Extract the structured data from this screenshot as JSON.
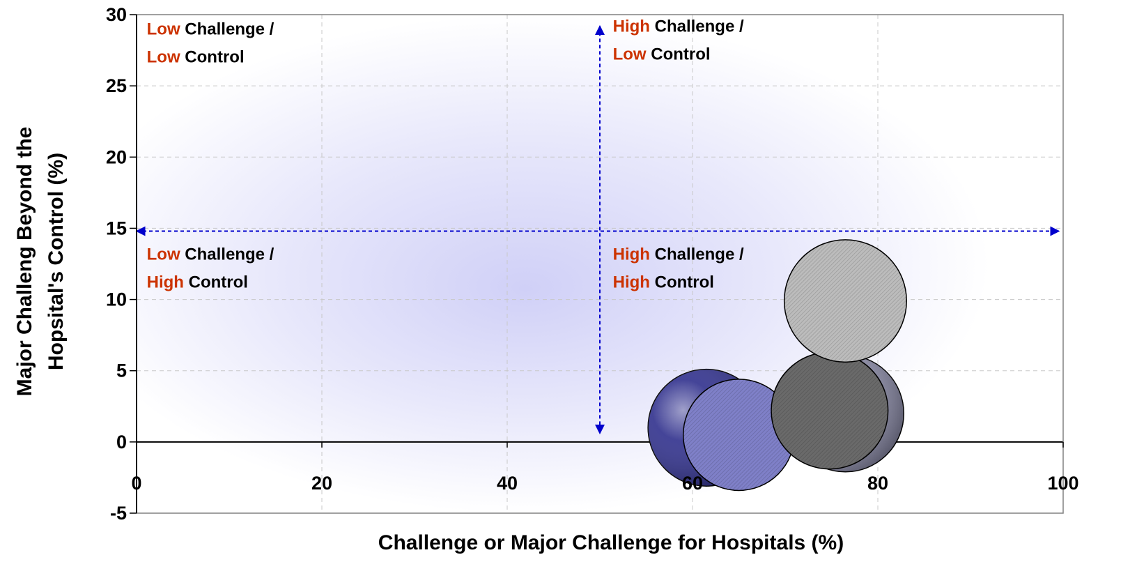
{
  "chart_data": {
    "type": "scatter",
    "subtype": "bubble",
    "title": "",
    "xlabel": "Challenge or Major Challenge for Hospitals (%)",
    "ylabel_line1": "Major Challeng Beyond the",
    "ylabel_line2": "Hopsital's Control (%)",
    "xlim": [
      0,
      100
    ],
    "ylim": [
      -5,
      30
    ],
    "x_ticks": [
      "0",
      "20",
      "40",
      "60",
      "80",
      "100"
    ],
    "y_ticks": [
      "-5",
      "0",
      "5",
      "10",
      "15",
      "20",
      "25",
      "30"
    ],
    "grid": true,
    "background": "soft blue radial gradient",
    "divider_x": 50,
    "divider_y": 14.8,
    "divider_color": "#0000cc",
    "quadrant_labels": [
      {
        "id": "low-low",
        "x": 1.1,
        "y": 28.6,
        "lines": [
          [
            "Low",
            " Challenge /"
          ],
          [
            "Low",
            " Control"
          ]
        ]
      },
      {
        "id": "high-low",
        "x": 51.4,
        "y": 28.8,
        "lines": [
          [
            "High",
            " Challenge /"
          ],
          [
            "Low",
            " Control"
          ]
        ]
      },
      {
        "id": "low-high",
        "x": 1.1,
        "y": 12.8,
        "lines": [
          [
            "Low",
            " Challenge /"
          ],
          [
            "High",
            " Control"
          ]
        ]
      },
      {
        "id": "high-high",
        "x": 51.4,
        "y": 12.8,
        "lines": [
          [
            "High",
            " Challenge /"
          ],
          [
            "High",
            " Control"
          ]
        ]
      }
    ],
    "label_highlight_color": "#cc3300",
    "label_text_color": "#000000",
    "bubbles": [
      {
        "x": 61.5,
        "y": 1.0,
        "size": 6.3,
        "fill": "#2b2b8a",
        "style": "shaded"
      },
      {
        "x": 65.0,
        "y": 0.5,
        "size": 6.0,
        "fill": "#7f80c8",
        "style": "hatched"
      },
      {
        "x": 76.5,
        "y": 2.0,
        "size": 6.3,
        "fill": "#8b8ba8",
        "style": "shaded"
      },
      {
        "x": 74.8,
        "y": 2.2,
        "size": 6.3,
        "fill": "#6a6a6a",
        "style": "hatched"
      },
      {
        "x": 76.5,
        "y": 9.9,
        "size": 6.6,
        "fill": "#bcbcbc",
        "style": "hatched"
      }
    ]
  }
}
